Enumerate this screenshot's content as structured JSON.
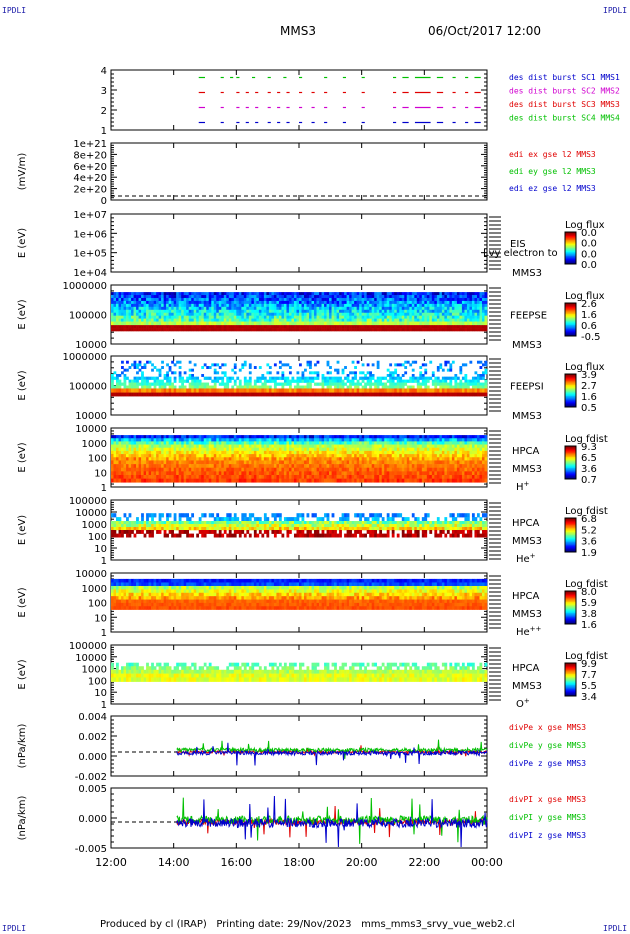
{
  "corner_label": "IPDLI",
  "header": {
    "spacecraft": "MMS3",
    "datetime": "06/Oct/2017 12:00"
  },
  "footer": {
    "produced_by": "Produced by cl (IRAP)",
    "printing_date": "Printing date: 29/Nov/2023",
    "filename": "mms_mms3_srvy_vue_web2.cl"
  },
  "colors": {
    "red": "#e00000",
    "magenta": "#d000d0",
    "blue": "#0000cc",
    "green": "#00c000"
  },
  "chart_data": [
    {
      "id": "avail",
      "type": "scatter",
      "ylim": [
        0.5,
        4.5
      ],
      "yticks": [
        "1",
        "2",
        "3",
        "4"
      ],
      "legend": [
        {
          "text": "des dist burst SC1 MMS1",
          "color": "#0000cc"
        },
        {
          "text": "des dist burst SC2 MMS2",
          "color": "#d000d0"
        },
        {
          "text": "des dist burst SC3 MMS3",
          "color": "#e00000"
        },
        {
          "text": "des dist burst SC4 MMS4",
          "color": "#00c000"
        }
      ],
      "series": [
        {
          "level": 4,
          "color": "#00c000",
          "segments": [
            [
              14.8,
              15.0
            ],
            [
              15.5,
              15.6
            ],
            [
              15.8,
              15.9
            ],
            [
              16.0,
              16.1
            ],
            [
              16.5,
              16.6
            ],
            [
              17.0,
              17.1
            ],
            [
              17.5,
              17.6
            ],
            [
              18.0,
              18.1
            ],
            [
              18.8,
              18.9
            ],
            [
              19.4,
              19.5
            ],
            [
              20.0,
              20.1
            ],
            [
              21.0,
              21.1
            ],
            [
              21.3,
              21.5
            ],
            [
              21.7,
              22.2
            ],
            [
              22.4,
              22.6
            ],
            [
              22.9,
              23.0
            ],
            [
              23.3,
              23.4
            ],
            [
              23.6,
              23.8
            ]
          ]
        },
        {
          "level": 3,
          "color": "#e00000",
          "segments": [
            [
              14.8,
              15.0
            ],
            [
              15.5,
              15.6
            ],
            [
              16.0,
              16.1
            ],
            [
              16.3,
              16.4
            ],
            [
              16.6,
              16.7
            ],
            [
              17.0,
              17.1
            ],
            [
              17.3,
              17.4
            ],
            [
              17.6,
              17.7
            ],
            [
              18.0,
              18.1
            ],
            [
              18.4,
              18.5
            ],
            [
              18.8,
              18.9
            ],
            [
              19.4,
              19.5
            ],
            [
              20.0,
              20.1
            ],
            [
              21.0,
              21.1
            ],
            [
              21.3,
              21.5
            ],
            [
              21.7,
              22.2
            ],
            [
              22.4,
              22.6
            ],
            [
              22.9,
              23.0
            ],
            [
              23.3,
              23.4
            ],
            [
              23.6,
              23.8
            ]
          ]
        },
        {
          "level": 2,
          "color": "#d000d0",
          "segments": [
            [
              14.8,
              15.0
            ],
            [
              15.5,
              15.6
            ],
            [
              16.0,
              16.1
            ],
            [
              16.3,
              16.4
            ],
            [
              16.6,
              16.7
            ],
            [
              17.0,
              17.1
            ],
            [
              17.3,
              17.4
            ],
            [
              17.6,
              17.7
            ],
            [
              18.0,
              18.1
            ],
            [
              18.4,
              18.5
            ],
            [
              18.8,
              18.9
            ],
            [
              19.4,
              19.5
            ],
            [
              20.0,
              20.1
            ],
            [
              21.0,
              21.1
            ],
            [
              21.3,
              21.5
            ],
            [
              21.7,
              22.2
            ],
            [
              22.4,
              22.6
            ],
            [
              22.9,
              23.0
            ],
            [
              23.3,
              23.4
            ],
            [
              23.6,
              23.8
            ]
          ]
        },
        {
          "level": 1,
          "color": "#0000cc",
          "segments": [
            [
              14.8,
              15.0
            ],
            [
              15.5,
              15.6
            ],
            [
              16.0,
              16.1
            ],
            [
              16.3,
              16.4
            ],
            [
              16.6,
              16.7
            ],
            [
              17.0,
              17.1
            ],
            [
              17.3,
              17.4
            ],
            [
              17.6,
              17.7
            ],
            [
              18.0,
              18.1
            ],
            [
              18.4,
              18.5
            ],
            [
              18.8,
              18.9
            ],
            [
              19.4,
              19.5
            ],
            [
              20.0,
              20.1
            ],
            [
              21.0,
              21.1
            ],
            [
              21.3,
              21.5
            ],
            [
              21.7,
              22.2
            ],
            [
              22.4,
              22.6
            ],
            [
              22.9,
              23.0
            ],
            [
              23.3,
              23.4
            ],
            [
              23.6,
              23.8
            ]
          ]
        }
      ]
    },
    {
      "id": "edi",
      "type": "line",
      "ylabel": "(mV/m)",
      "yticks": [
        "0",
        "2e+20",
        "4e+20",
        "6e+20",
        "8e+20",
        "1e+21"
      ],
      "ylim": [
        0,
        1e+21
      ],
      "legend": [
        {
          "text": "edi ex gse l2 MMS3",
          "color": "#e00000"
        },
        {
          "text": "edi ey gse l2 MMS3",
          "color": "#00c000"
        },
        {
          "text": "edi ez gse l2 MMS3",
          "color": "#0000cc"
        }
      ]
    },
    {
      "id": "eis",
      "type": "heatmap",
      "ylabel": "E (eV)",
      "yticks": [
        "1e+04",
        "1e+05",
        "1e+06",
        "1e+07"
      ],
      "labels": [
        "EIS",
        "MMS3"
      ],
      "overlay": "Lvy electron to",
      "cb_title": "Log flux",
      "cb_ticks": [
        "0.0",
        "0.0",
        "0.0",
        "0.0"
      ]
    },
    {
      "id": "feepse",
      "type": "heatmap",
      "ylabel": "E (eV)",
      "yticks": [
        "10000",
        "100000",
        "1000000"
      ],
      "labels": [
        "FEEPSE",
        "MMS3"
      ],
      "cb_title": "Log flux",
      "cb_ticks": [
        "2.6",
        "1.6",
        "0.6",
        "-0.5"
      ]
    },
    {
      "id": "feepsi",
      "type": "heatmap",
      "ylabel": "E (eV)",
      "yticks": [
        "10000",
        "100000",
        "1000000"
      ],
      "labels": [
        "FEEPSI",
        "MMS3"
      ],
      "cb_title": "Log flux",
      "cb_ticks": [
        "3.9",
        "2.7",
        "1.6",
        "0.5"
      ]
    },
    {
      "id": "hpca_h",
      "type": "heatmap",
      "ylabel": "E (eV)",
      "yticks": [
        "1",
        "10",
        "100",
        "1000",
        "10000"
      ],
      "labels": [
        "HPCA",
        "MMS3"
      ],
      "species": "H",
      "charge": "+",
      "cb_title": "Log fdist",
      "cb_ticks": [
        "9.3",
        "6.5",
        "3.6",
        "0.7"
      ]
    },
    {
      "id": "hpca_he",
      "type": "heatmap",
      "ylabel": "E (eV)",
      "yticks": [
        "1",
        "10",
        "100",
        "1000",
        "10000",
        "100000"
      ],
      "labels": [
        "HPCA",
        "MMS3"
      ],
      "species": "He",
      "charge": "+",
      "cb_title": "Log fdist",
      "cb_ticks": [
        "6.8",
        "5.2",
        "3.6",
        "1.9"
      ]
    },
    {
      "id": "hpca_hepp",
      "type": "heatmap",
      "ylabel": "E (eV)",
      "yticks": [
        "1",
        "10",
        "100",
        "1000",
        "10000"
      ],
      "labels": [
        "HPCA",
        "MMS3"
      ],
      "species": "He",
      "charge": "++",
      "cb_title": "Log fdist",
      "cb_ticks": [
        "8.0",
        "5.9",
        "3.8",
        "1.6"
      ]
    },
    {
      "id": "hpca_o",
      "type": "heatmap",
      "ylabel": "E (eV)",
      "yticks": [
        "1",
        "10",
        "100",
        "1000",
        "10000",
        "100000"
      ],
      "labels": [
        "HPCA",
        "MMS3"
      ],
      "species": "O",
      "charge": "+",
      "cb_title": "Log fdist",
      "cb_ticks": [
        "9.9",
        "7.7",
        "5.5",
        "3.4"
      ]
    },
    {
      "id": "divpe",
      "type": "line",
      "ylabel": "(nPa/km)",
      "yticks": [
        "-0.002",
        "0.000",
        "0.002",
        "0.004"
      ],
      "ylim": [
        -0.003,
        0.0045
      ],
      "legend": [
        {
          "text": "divPe x gse MMS3",
          "color": "#e00000"
        },
        {
          "text": "divPe y gse MMS3",
          "color": "#00c000"
        },
        {
          "text": "divPe z gse MMS3",
          "color": "#0000cc"
        }
      ]
    },
    {
      "id": "divpi",
      "type": "line",
      "ylabel": "(nPa/km)",
      "yticks": [
        "-0.005",
        "0.000",
        "0.005"
      ],
      "ylim": [
        -0.0065,
        0.0085
      ],
      "legend": [
        {
          "text": "divPI x gse MMS3",
          "color": "#e00000"
        },
        {
          "text": "divPI y gse MMS3",
          "color": "#00c000"
        },
        {
          "text": "divPI z gse MMS3",
          "color": "#0000cc"
        }
      ]
    }
  ],
  "x_axis": {
    "range_hours": [
      12,
      24
    ],
    "ticks": [
      "12:00",
      "14:00",
      "16:00",
      "18:00",
      "20:00",
      "22:00",
      "00:00"
    ]
  }
}
